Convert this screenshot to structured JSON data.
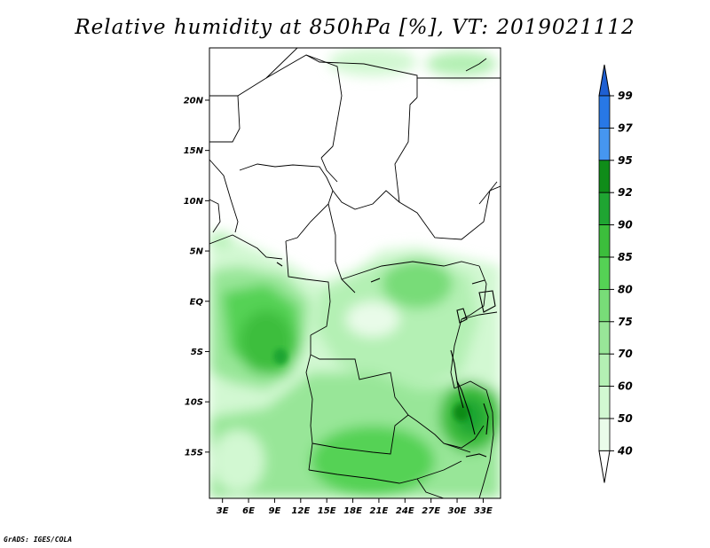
{
  "title": "Relative humidity at 850hPa [%], VT: 2019021112",
  "credit": "GrADS: IGES/COLA",
  "map": {
    "variable": "Relative humidity at 850hPa",
    "units": "%",
    "valid_time": "2019021112",
    "lon_ticks": [
      "3E",
      "6E",
      "9E",
      "12E",
      "15E",
      "18E",
      "21E",
      "24E",
      "27E",
      "30E",
      "33E"
    ],
    "lat_ticks": [
      "20N",
      "15N",
      "10N",
      "5N",
      "EQ",
      "5S",
      "10S",
      "15S"
    ],
    "lon_values": [
      3,
      6,
      9,
      12,
      15,
      18,
      21,
      24,
      27,
      30,
      33
    ],
    "lat_values": [
      20,
      15,
      10,
      5,
      0,
      -5,
      -10,
      -15
    ],
    "lon_range": [
      1.5,
      35
    ],
    "lat_range": [
      -19.6,
      25.2
    ]
  },
  "colorbar": {
    "levels": [
      "99",
      "97",
      "95",
      "92",
      "90",
      "85",
      "80",
      "75",
      "70",
      "60",
      "50",
      "40"
    ],
    "colors": [
      "#1e5fd2",
      "#2878e6",
      "#4696f0",
      "#0f8c19",
      "#1fa532",
      "#3cbe3c",
      "#55d255",
      "#78dc78",
      "#98e698",
      "#b4f0b4",
      "#d2f8d2",
      "#eafcea"
    ]
  }
}
